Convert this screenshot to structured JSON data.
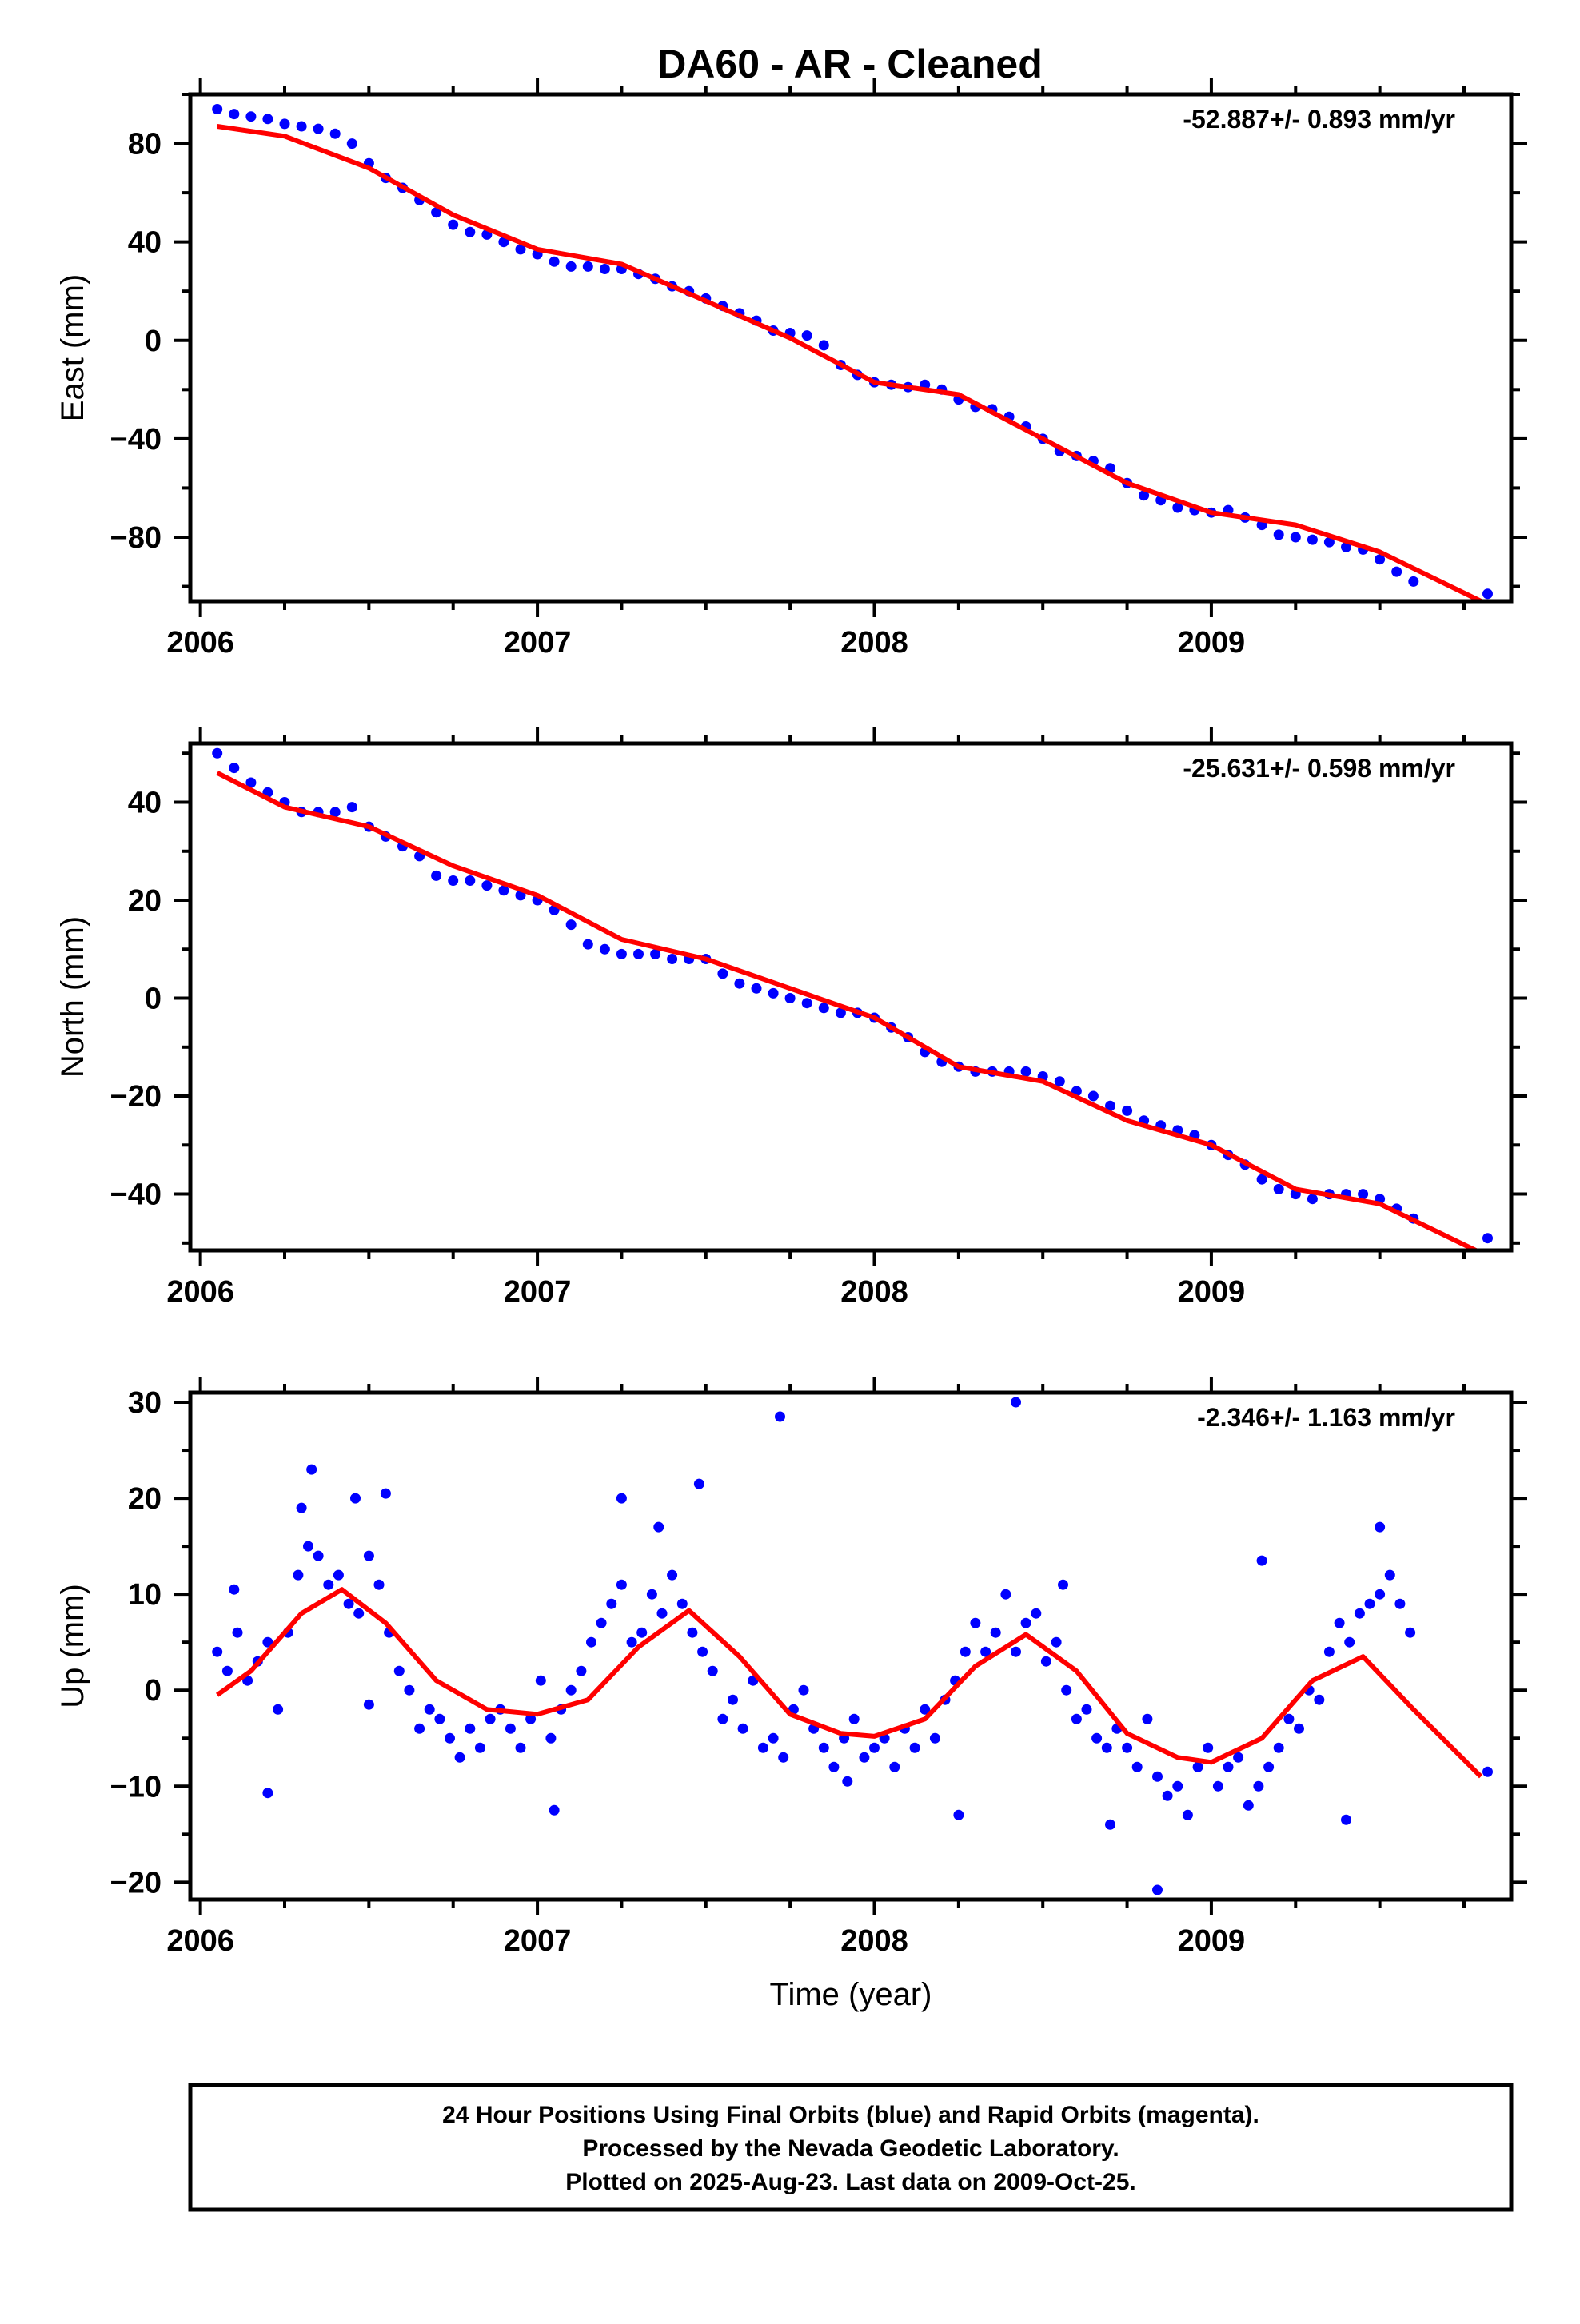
{
  "title": "DA60  - AR - Cleaned",
  "colors": {
    "data": "#0000ff",
    "fit": "#ff0000",
    "frame": "#000000"
  },
  "chart_data": [
    {
      "type": "scatter",
      "name": "east",
      "ylabel": "East (mm)",
      "xlabel": "",
      "rate_label": "-52.887+/- 0.893 mm/yr",
      "xlim": [
        2005.97,
        2009.89
      ],
      "ylim": [
        -106,
        100
      ],
      "yticks": [
        80,
        40,
        0,
        -40,
        -80
      ],
      "ytick_labels": [
        "80",
        "40",
        "0",
        "−40",
        "−80"
      ],
      "xticks": [
        2006,
        2007,
        2008,
        2009
      ],
      "xtick_labels": [
        "2006",
        "2007",
        "2008",
        "2009"
      ],
      "fit": {
        "x": [
          2006.05,
          2006.25,
          2006.5,
          2006.75,
          2007.0,
          2007.25,
          2007.5,
          2007.75,
          2008.0,
          2008.25,
          2008.5,
          2008.75,
          2009.0,
          2009.25,
          2009.5,
          2009.8
        ],
        "y": [
          87,
          83,
          70,
          51,
          37,
          31,
          16,
          1,
          -17,
          -22,
          -40,
          -58,
          -70,
          -75,
          -86,
          -106
        ]
      },
      "points": {
        "x": [
          2006.05,
          2006.1,
          2006.15,
          2006.2,
          2006.25,
          2006.3,
          2006.35,
          2006.4,
          2006.45,
          2006.5,
          2006.55,
          2006.6,
          2006.65,
          2006.7,
          2006.75,
          2006.8,
          2006.85,
          2006.9,
          2006.95,
          2007.0,
          2007.05,
          2007.1,
          2007.15,
          2007.2,
          2007.25,
          2007.3,
          2007.35,
          2007.4,
          2007.45,
          2007.5,
          2007.55,
          2007.6,
          2007.65,
          2007.7,
          2007.75,
          2007.8,
          2007.85,
          2007.9,
          2007.95,
          2008.0,
          2008.05,
          2008.1,
          2008.15,
          2008.2,
          2008.25,
          2008.3,
          2008.35,
          2008.4,
          2008.45,
          2008.5,
          2008.55,
          2008.6,
          2008.65,
          2008.7,
          2008.75,
          2008.8,
          2008.85,
          2008.9,
          2008.95,
          2009.0,
          2009.05,
          2009.1,
          2009.15,
          2009.2,
          2009.25,
          2009.3,
          2009.35,
          2009.4,
          2009.45,
          2009.5,
          2009.55,
          2009.6,
          2009.82
        ],
        "y": [
          94,
          92,
          91,
          90,
          88,
          87,
          86,
          84,
          80,
          72,
          66,
          62,
          57,
          52,
          47,
          44,
          43,
          40,
          37,
          35,
          32,
          30,
          30,
          29,
          29,
          27,
          25,
          22,
          20,
          17,
          14,
          11,
          8,
          4,
          3,
          2,
          -2,
          -10,
          -14,
          -17,
          -18,
          -19,
          -18,
          -20,
          -24,
          -27,
          -28,
          -31,
          -35,
          -40,
          -45,
          -47,
          -49,
          -52,
          -58,
          -63,
          -65,
          -68,
          -69,
          -70,
          -69,
          -72,
          -75,
          -79,
          -80,
          -81,
          -82,
          -84,
          -85,
          -89,
          -94,
          -98,
          -103
        ]
      }
    },
    {
      "type": "scatter",
      "name": "north",
      "ylabel": "North (mm)",
      "xlabel": "",
      "rate_label": "-25.631+/- 0.598 mm/yr",
      "xlim": [
        2005.97,
        2009.89
      ],
      "ylim": [
        -51.5,
        52
      ],
      "yticks": [
        40,
        20,
        0,
        -20,
        -40
      ],
      "ytick_labels": [
        "40",
        "20",
        "0",
        "−20",
        "−40"
      ],
      "xticks": [
        2006,
        2007,
        2008,
        2009
      ],
      "xtick_labels": [
        "2006",
        "2007",
        "2008",
        "2009"
      ],
      "fit": {
        "x": [
          2006.05,
          2006.25,
          2006.5,
          2006.75,
          2007.0,
          2007.25,
          2007.5,
          2007.75,
          2008.0,
          2008.25,
          2008.5,
          2008.75,
          2009.0,
          2009.25,
          2009.5,
          2009.8
        ],
        "y": [
          46,
          39,
          35,
          27,
          21,
          12,
          8,
          2,
          -4,
          -14,
          -17,
          -25,
          -30,
          -39,
          -42,
          -52
        ]
      },
      "points": {
        "x": [
          2006.05,
          2006.1,
          2006.15,
          2006.2,
          2006.25,
          2006.3,
          2006.35,
          2006.4,
          2006.45,
          2006.5,
          2006.55,
          2006.6,
          2006.65,
          2006.7,
          2006.75,
          2006.8,
          2006.85,
          2006.9,
          2006.95,
          2007.0,
          2007.05,
          2007.1,
          2007.15,
          2007.2,
          2007.25,
          2007.3,
          2007.35,
          2007.4,
          2007.45,
          2007.5,
          2007.55,
          2007.6,
          2007.65,
          2007.7,
          2007.75,
          2007.8,
          2007.85,
          2007.9,
          2007.95,
          2008.0,
          2008.05,
          2008.1,
          2008.15,
          2008.2,
          2008.25,
          2008.3,
          2008.35,
          2008.4,
          2008.45,
          2008.5,
          2008.55,
          2008.6,
          2008.65,
          2008.7,
          2008.75,
          2008.8,
          2008.85,
          2008.9,
          2008.95,
          2009.0,
          2009.05,
          2009.1,
          2009.15,
          2009.2,
          2009.25,
          2009.3,
          2009.35,
          2009.4,
          2009.45,
          2009.5,
          2009.55,
          2009.6,
          2009.82
        ],
        "y": [
          50,
          47,
          44,
          42,
          40,
          38,
          38,
          38,
          39,
          35,
          33,
          31,
          29,
          25,
          24,
          24,
          23,
          22,
          21,
          20,
          18,
          15,
          11,
          10,
          9,
          9,
          9,
          8,
          8,
          8,
          5,
          3,
          2,
          1,
          0,
          -1,
          -2,
          -3,
          -3,
          -4,
          -6,
          -8,
          -11,
          -13,
          -14,
          -15,
          -15,
          -15,
          -15,
          -16,
          -17,
          -19,
          -20,
          -22,
          -23,
          -25,
          -26,
          -27,
          -28,
          -30,
          -32,
          -34,
          -37,
          -39,
          -40,
          -41,
          -40,
          -40,
          -40,
          -41,
          -43,
          -45,
          -49
        ]
      }
    },
    {
      "type": "scatter",
      "name": "up",
      "ylabel": "Up (mm)",
      "xlabel": "Time (year)",
      "rate_label": "-2.346+/- 1.163 mm/yr",
      "xlim": [
        2005.97,
        2009.89
      ],
      "ylim": [
        -21.8,
        31
      ],
      "yticks": [
        30,
        20,
        10,
        0,
        -10,
        -20
      ],
      "ytick_labels": [
        "30",
        "20",
        "10",
        "0",
        "−10",
        "−20"
      ],
      "xticks": [
        2006,
        2007,
        2008,
        2009
      ],
      "xtick_labels": [
        "2006",
        "2007",
        "2008",
        "2009"
      ],
      "fit": {
        "x": [
          2006.05,
          2006.15,
          2006.3,
          2006.42,
          2006.55,
          2006.7,
          2006.85,
          2007.0,
          2007.15,
          2007.3,
          2007.45,
          2007.6,
          2007.75,
          2007.9,
          2008.0,
          2008.15,
          2008.3,
          2008.45,
          2008.6,
          2008.75,
          2008.9,
          2009.0,
          2009.15,
          2009.3,
          2009.45,
          2009.6,
          2009.8
        ],
        "y": [
          -0.5,
          2,
          8,
          10.5,
          7,
          1,
          -2,
          -2.5,
          -1,
          4.5,
          8.3,
          3.5,
          -2.5,
          -4.5,
          -4.8,
          -3,
          2.5,
          5.8,
          2,
          -4.5,
          -7,
          -7.5,
          -5,
          1,
          3.5,
          -2,
          -9
        ]
      },
      "points": {
        "x": [
          2006.05,
          2006.08,
          2006.11,
          2006.14,
          2006.17,
          2006.2,
          2006.23,
          2006.26,
          2006.29,
          2006.32,
          2006.35,
          2006.38,
          2006.41,
          2006.44,
          2006.47,
          2006.5,
          2006.53,
          2006.56,
          2006.59,
          2006.62,
          2006.65,
          2006.68,
          2006.71,
          2006.74,
          2006.77,
          2006.8,
          2006.83,
          2006.86,
          2006.89,
          2006.92,
          2006.95,
          2006.98,
          2007.01,
          2007.04,
          2007.07,
          2007.1,
          2007.13,
          2007.16,
          2007.19,
          2007.22,
          2007.25,
          2007.28,
          2007.31,
          2007.34,
          2007.37,
          2007.4,
          2007.43,
          2007.46,
          2007.49,
          2007.52,
          2007.55,
          2007.58,
          2007.61,
          2007.64,
          2007.67,
          2007.7,
          2007.73,
          2007.76,
          2007.79,
          2007.82,
          2007.85,
          2007.88,
          2007.91,
          2007.94,
          2007.97,
          2008.0,
          2008.03,
          2008.06,
          2008.09,
          2008.12,
          2008.15,
          2008.18,
          2008.21,
          2008.24,
          2008.27,
          2008.3,
          2008.33,
          2008.36,
          2008.39,
          2008.42,
          2008.45,
          2008.48,
          2008.51,
          2008.54,
          2008.57,
          2008.6,
          2008.63,
          2008.66,
          2008.69,
          2008.72,
          2008.75,
          2008.78,
          2008.81,
          2008.84,
          2008.87,
          2008.9,
          2008.93,
          2008.96,
          2008.99,
          2009.02,
          2009.05,
          2009.08,
          2009.11,
          2009.14,
          2009.17,
          2009.2,
          2009.23,
          2009.26,
          2009.29,
          2009.32,
          2009.35,
          2009.38,
          2009.41,
          2009.44,
          2009.47,
          2009.5,
          2009.53,
          2009.56,
          2009.59,
          2009.82,
          2006.33,
          2006.46,
          2007.72,
          2008.42,
          2006.2,
          2008.84,
          2007.48,
          2006.1,
          2006.5,
          2007.25,
          2007.92,
          2008.56,
          2009.15,
          2006.55,
          2007.36,
          2008.25,
          2009.5,
          2006.3,
          2007.05,
          2008.7,
          2009.4
        ],
        "y": [
          4,
          2,
          6,
          1,
          3,
          5,
          -2,
          6,
          12,
          15,
          14,
          11,
          12,
          9,
          8,
          14,
          11,
          6,
          2,
          0,
          -4,
          -2,
          -3,
          -5,
          -7,
          -4,
          -6,
          -3,
          -2,
          -4,
          -6,
          -3,
          1,
          -5,
          -2,
          0,
          2,
          5,
          7,
          9,
          11,
          5,
          6,
          10,
          8,
          12,
          9,
          6,
          4,
          2,
          -3,
          -1,
          -4,
          1,
          -6,
          -5,
          -7,
          -2,
          0,
          -4,
          -6,
          -8,
          -5,
          -3,
          -7,
          -6,
          -5,
          -8,
          -4,
          -6,
          -2,
          -5,
          -1,
          1,
          4,
          7,
          4,
          6,
          10,
          4,
          7,
          8,
          3,
          5,
          0,
          -3,
          -2,
          -5,
          -6,
          -4,
          -6,
          -8,
          -3,
          -9,
          -11,
          -10,
          -13,
          -8,
          -6,
          -10,
          -8,
          -7,
          -12,
          -10,
          -8,
          -6,
          -3,
          -4,
          0,
          -1,
          4,
          7,
          5,
          8,
          9,
          10,
          12,
          9,
          6,
          -8.5,
          23,
          20,
          28.5,
          30,
          -10.7,
          -20.8,
          21.5,
          10.5,
          -1.5,
          20,
          -9.5,
          11,
          13.5,
          20.5,
          17,
          -13,
          17,
          19,
          -12.5,
          -14,
          -13.5
        ]
      }
    }
  ],
  "footer": {
    "line1": "24 Hour Positions Using Final Orbits (blue) and Rapid Orbits (magenta).",
    "line2": "Processed by the Nevada Geodetic Laboratory.",
    "line3": "Plotted on 2025-Aug-23. Last data on 2009-Oct-25."
  }
}
